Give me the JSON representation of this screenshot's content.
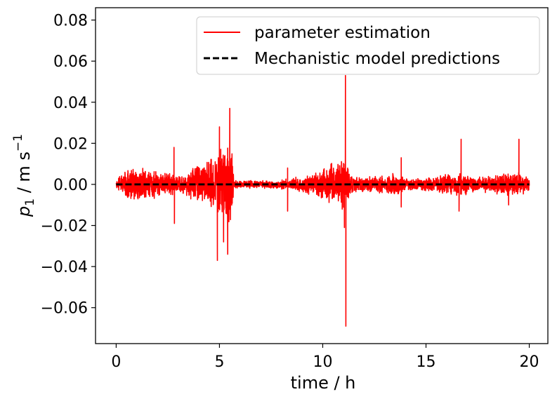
{
  "chart_data": {
    "type": "line",
    "xlabel": "time / h",
    "ylabel_main": "p",
    "ylabel_sub": "1",
    "ylabel_units": " / m s",
    "ylabel_exp": "−1",
    "xlim": [
      -1.0,
      20.9
    ],
    "ylim": [
      -0.0775,
      0.086
    ],
    "xticks": [
      0,
      5,
      10,
      15,
      20
    ],
    "xtick_labels": [
      "0",
      "5",
      "10",
      "15",
      "20"
    ],
    "yticks": [
      -0.06,
      -0.04,
      -0.02,
      0.0,
      0.02,
      0.04,
      0.06,
      0.08
    ],
    "ytick_labels": [
      "−0.06",
      "−0.04",
      "−0.02",
      "0.00",
      "0.02",
      "0.04",
      "0.06",
      "0.08"
    ],
    "grid": false,
    "legend_position": "top-right",
    "series": [
      {
        "name": "parameter estimation",
        "color": "#ff0000",
        "style": "solid",
        "envelope": [
          {
            "t": 0.0,
            "amp": 0.003
          },
          {
            "t": 0.6,
            "amp": 0.009
          },
          {
            "t": 1.5,
            "amp": 0.008
          },
          {
            "t": 2.6,
            "amp": 0.006
          },
          {
            "t": 3.0,
            "amp": 0.004
          },
          {
            "t": 4.0,
            "amp": 0.01
          },
          {
            "t": 5.0,
            "amp": 0.018
          },
          {
            "t": 5.6,
            "amp": 0.022
          },
          {
            "t": 5.7,
            "amp": 0.002
          },
          {
            "t": 7.5,
            "amp": 0.002
          },
          {
            "t": 8.5,
            "amp": 0.003
          },
          {
            "t": 9.5,
            "amp": 0.006
          },
          {
            "t": 10.5,
            "amp": 0.011
          },
          {
            "t": 11.0,
            "amp": 0.013
          },
          {
            "t": 11.5,
            "amp": 0.004
          },
          {
            "t": 12.5,
            "amp": 0.004
          },
          {
            "t": 13.5,
            "amp": 0.006
          },
          {
            "t": 14.0,
            "amp": 0.003
          },
          {
            "t": 15.5,
            "amp": 0.004
          },
          {
            "t": 16.5,
            "amp": 0.006
          },
          {
            "t": 17.5,
            "amp": 0.004
          },
          {
            "t": 19.5,
            "amp": 0.006
          },
          {
            "t": 20.0,
            "amp": 0.004
          }
        ],
        "spikes": [
          {
            "t": 2.8,
            "y": 0.018
          },
          {
            "t": 2.82,
            "y": -0.019
          },
          {
            "t": 4.9,
            "y": -0.037
          },
          {
            "t": 5.0,
            "y": 0.028
          },
          {
            "t": 5.5,
            "y": 0.037
          },
          {
            "t": 5.2,
            "y": -0.028
          },
          {
            "t": 5.4,
            "y": -0.034
          },
          {
            "t": 8.3,
            "y": 0.008
          },
          {
            "t": 8.3,
            "y": -0.013
          },
          {
            "t": 11.1,
            "y": 0.053
          },
          {
            "t": 11.12,
            "y": -0.069
          },
          {
            "t": 11.05,
            "y": -0.021
          },
          {
            "t": 13.8,
            "y": 0.013
          },
          {
            "t": 13.8,
            "y": -0.011
          },
          {
            "t": 16.7,
            "y": 0.022
          },
          {
            "t": 16.6,
            "y": -0.013
          },
          {
            "t": 19.5,
            "y": 0.022
          },
          {
            "t": 19.0,
            "y": -0.01
          }
        ]
      },
      {
        "name": "Mechanistic model predictions",
        "color": "#000000",
        "style": "dashed",
        "x": [
          0,
          20
        ],
        "y": [
          0,
          0
        ]
      }
    ]
  }
}
